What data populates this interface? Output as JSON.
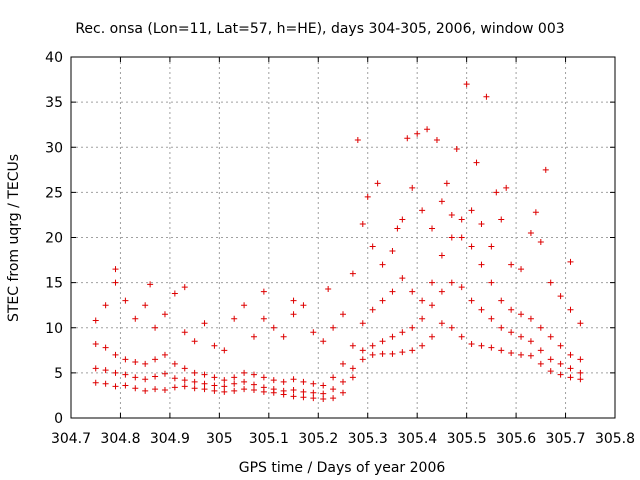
{
  "chart_data": {
    "type": "scatter",
    "title": "Rec. onsa (Lon=11, Lat=57, h=HE), days 304-305, 2006, window 003",
    "xlabel": "GPS time / Days of year 2006",
    "ylabel": "STEC from uqrg / TECUs",
    "xlim": [
      304.7,
      305.8
    ],
    "ylim": [
      0,
      40
    ],
    "x_ticks": [
      304.7,
      304.8,
      304.9,
      305.0,
      305.1,
      305.2,
      305.3,
      305.4,
      305.5,
      305.6,
      305.7,
      305.8
    ],
    "x_tick_labels": [
      "304.7",
      "304.8",
      "304.9",
      "305",
      "305.1",
      "305.2",
      "305.3",
      "305.4",
      "305.5",
      "305.6",
      "305.7",
      "305.8"
    ],
    "y_ticks": [
      0,
      5,
      10,
      15,
      20,
      25,
      30,
      35,
      40
    ],
    "y_tick_labels": [
      "0",
      "5",
      "10",
      "15",
      "20",
      "25",
      "30",
      "35",
      "40"
    ],
    "grid": true,
    "marker": "+",
    "color": "#dd0000",
    "series": [
      {
        "name": "lower track",
        "x": [
          304.75,
          304.77,
          304.79,
          304.81,
          304.83,
          304.85,
          304.87,
          304.89,
          304.91,
          304.93,
          304.95,
          304.97,
          304.99,
          305.01,
          305.03,
          305.05,
          305.07,
          305.09,
          305.11,
          305.13,
          305.15,
          305.17,
          305.19,
          305.21,
          305.23,
          305.25,
          305.27,
          305.29,
          305.31,
          305.33,
          305.35,
          305.37,
          305.39,
          305.41,
          305.43,
          305.45,
          305.47,
          305.49,
          305.51,
          305.53,
          305.55,
          305.57,
          305.59,
          305.61,
          305.63,
          305.65,
          305.67,
          305.69,
          305.71,
          305.73
        ],
        "y": [
          3.9,
          3.8,
          3.5,
          3.6,
          3.3,
          3.0,
          3.2,
          3.1,
          3.4,
          3.5,
          3.3,
          3.2,
          3.0,
          2.9,
          3.0,
          3.2,
          3.1,
          2.9,
          2.8,
          2.6,
          2.4,
          2.3,
          2.2,
          2.1,
          2.2,
          2.8,
          4.5,
          6.5,
          7.0,
          7.1,
          7.1,
          7.3,
          7.5,
          8.0,
          9.0,
          10.5,
          10.0,
          9.0,
          8.2,
          8.0,
          7.8,
          7.5,
          7.2,
          7.0,
          6.9,
          6.0,
          5.2,
          4.8,
          4.5,
          4.3
        ]
      },
      {
        "name": "middle track",
        "x": [
          304.75,
          304.77,
          304.79,
          304.81,
          304.83,
          304.85,
          304.87,
          304.89,
          304.91,
          304.93,
          304.95,
          304.97,
          304.99,
          305.01,
          305.03,
          305.05,
          305.07,
          305.09,
          305.11,
          305.13,
          305.15,
          305.17,
          305.19,
          305.21,
          305.23,
          305.25,
          305.27,
          305.29,
          305.31,
          305.33,
          305.35,
          305.37,
          305.39,
          305.41,
          305.43,
          305.45,
          305.47,
          305.49,
          305.51,
          305.53,
          305.55,
          305.57,
          305.59,
          305.61,
          305.63,
          305.65,
          305.67,
          305.69,
          305.71,
          305.73
        ],
        "y": [
          5.5,
          5.3,
          5.0,
          4.8,
          4.5,
          4.3,
          4.6,
          4.9,
          4.4,
          4.2,
          4.0,
          3.8,
          3.6,
          3.5,
          3.8,
          4.0,
          3.7,
          3.4,
          3.2,
          3.0,
          3.1,
          2.9,
          2.8,
          2.7,
          3.2,
          4.0,
          5.5,
          7.5,
          8.0,
          8.5,
          9.0,
          9.5,
          10.0,
          11.0,
          12.5,
          14.0,
          15.0,
          14.5,
          13.0,
          12.0,
          11.0,
          10.0,
          9.5,
          9.0,
          8.5,
          7.5,
          6.5,
          6.0,
          5.5,
          5.0
        ]
      },
      {
        "name": "upper track",
        "x": [
          304.75,
          304.77,
          304.79,
          304.81,
          304.83,
          304.85,
          304.87,
          304.89,
          304.91,
          304.93,
          304.95,
          304.97,
          304.99,
          305.01,
          305.03,
          305.05,
          305.07,
          305.09,
          305.11,
          305.13,
          305.15,
          305.17,
          305.19,
          305.21,
          305.23,
          305.25,
          305.27,
          305.29,
          305.31,
          305.33,
          305.35,
          305.37,
          305.39,
          305.41,
          305.43,
          305.45,
          305.47,
          305.49,
          305.51,
          305.53,
          305.55,
          305.57,
          305.59,
          305.61,
          305.63,
          305.65,
          305.67,
          305.69,
          305.71,
          305.73
        ],
        "y": [
          8.2,
          7.8,
          7.0,
          6.5,
          6.2,
          6.0,
          6.5,
          7.0,
          6.0,
          5.5,
          5.0,
          4.8,
          4.5,
          4.2,
          4.5,
          5.0,
          4.8,
          4.5,
          4.2,
          4.0,
          4.3,
          4.0,
          3.8,
          3.6,
          4.5,
          6.0,
          8.0,
          10.5,
          12.0,
          13.0,
          14.0,
          15.5,
          14.0,
          13.0,
          15.0,
          18.0,
          20.0,
          22.0,
          19.0,
          17.0,
          15.0,
          13.0,
          12.0,
          11.5,
          11.0,
          10.0,
          9.0,
          8.0,
          7.0,
          6.5
        ]
      },
      {
        "name": "high track",
        "x": [
          304.75,
          304.77,
          304.79,
          304.81,
          304.83,
          304.85,
          304.87,
          304.89,
          304.91,
          304.93,
          304.95,
          304.97,
          304.99,
          305.01,
          305.03,
          305.05,
          305.07,
          305.09,
          305.11,
          305.13,
          305.15,
          305.17,
          305.19,
          305.21,
          305.23,
          305.25,
          305.27,
          305.29,
          305.31,
          305.33,
          305.35,
          305.37,
          305.39,
          305.41,
          305.43,
          305.45,
          305.47,
          305.49,
          305.51,
          305.53,
          305.55,
          305.57,
          305.59,
          305.61,
          305.63,
          305.65,
          305.67,
          305.69,
          305.71,
          305.73
        ],
        "y": [
          10.8,
          12.5,
          15.0,
          13.0,
          11.0,
          12.5,
          10.0,
          11.5,
          13.8,
          9.5,
          8.5,
          10.5,
          8.0,
          7.5,
          11.0,
          12.5,
          9.0,
          11.0,
          10.0,
          9.0,
          11.5,
          12.5,
          9.5,
          8.5,
          10.0,
          11.5,
          16.0,
          21.5,
          19.0,
          17.0,
          18.5,
          22.0,
          25.5,
          23.0,
          21.0,
          24.0,
          22.5,
          20.0,
          23.0,
          21.5,
          19.0,
          22.0,
          17.0,
          16.5,
          20.5,
          19.5,
          15.0,
          13.5,
          12.0,
          10.5
        ]
      },
      {
        "name": "peak outliers",
        "x": [
          304.79,
          304.86,
          304.93,
          305.09,
          305.15,
          305.22,
          305.28,
          305.3,
          305.32,
          305.36,
          305.38,
          305.4,
          305.42,
          305.44,
          305.46,
          305.48,
          305.5,
          305.52,
          305.54,
          305.56,
          305.58,
          305.64,
          305.66,
          305.71
        ],
        "y": [
          16.5,
          14.8,
          14.5,
          14.0,
          13.0,
          14.3,
          30.8,
          24.5,
          26.0,
          21.0,
          31.0,
          31.5,
          32.0,
          30.8,
          26.0,
          29.8,
          37.0,
          28.3,
          35.6,
          25.0,
          25.5,
          22.8,
          27.5,
          17.3
        ]
      }
    ]
  }
}
